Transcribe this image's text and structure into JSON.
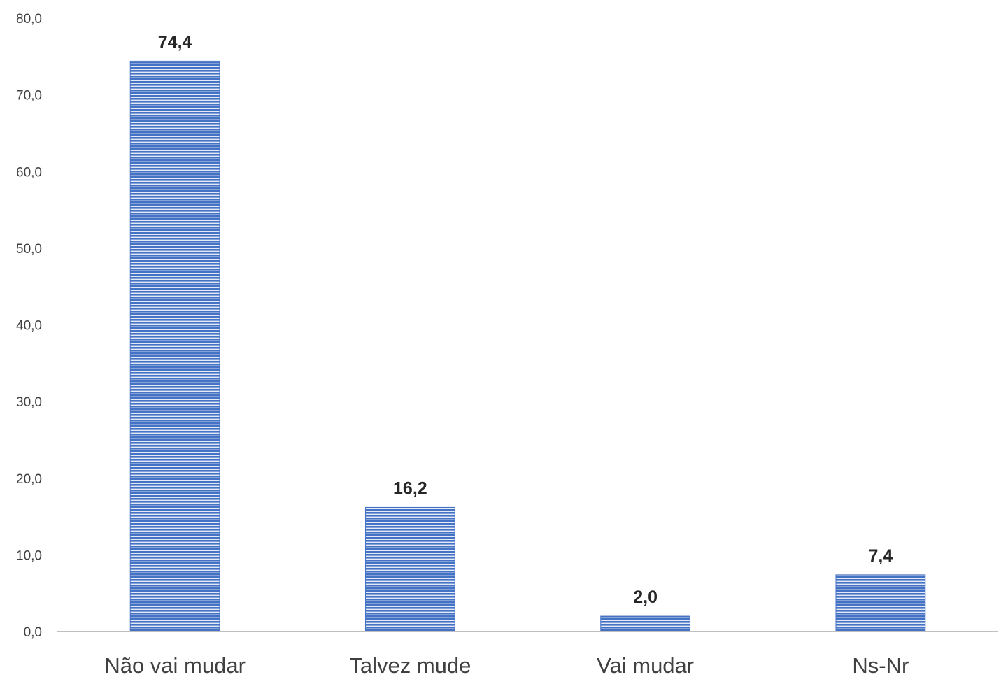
{
  "chart_data": {
    "type": "bar",
    "categories": [
      "Não vai mudar",
      "Talvez mude",
      "Vai mudar",
      "Ns-Nr"
    ],
    "values": [
      74.4,
      16.2,
      2.0,
      7.4
    ],
    "data_labels": [
      "74,4",
      "16,2",
      "2,0",
      "7,4"
    ],
    "y_tick_labels": [
      "0,0",
      "10,0",
      "20,0",
      "30,0",
      "40,0",
      "50,0",
      "60,0",
      "70,0",
      "80,0"
    ],
    "ylim": [
      0,
      80
    ],
    "y_tick_step": 10,
    "title": "",
    "xlabel": "",
    "ylabel": "",
    "grid": false,
    "legend": "none",
    "bar_color": "#4472c4",
    "bar_stripe_color": "#ffffff",
    "bar_fill_pattern": "horizontal-stripes"
  }
}
